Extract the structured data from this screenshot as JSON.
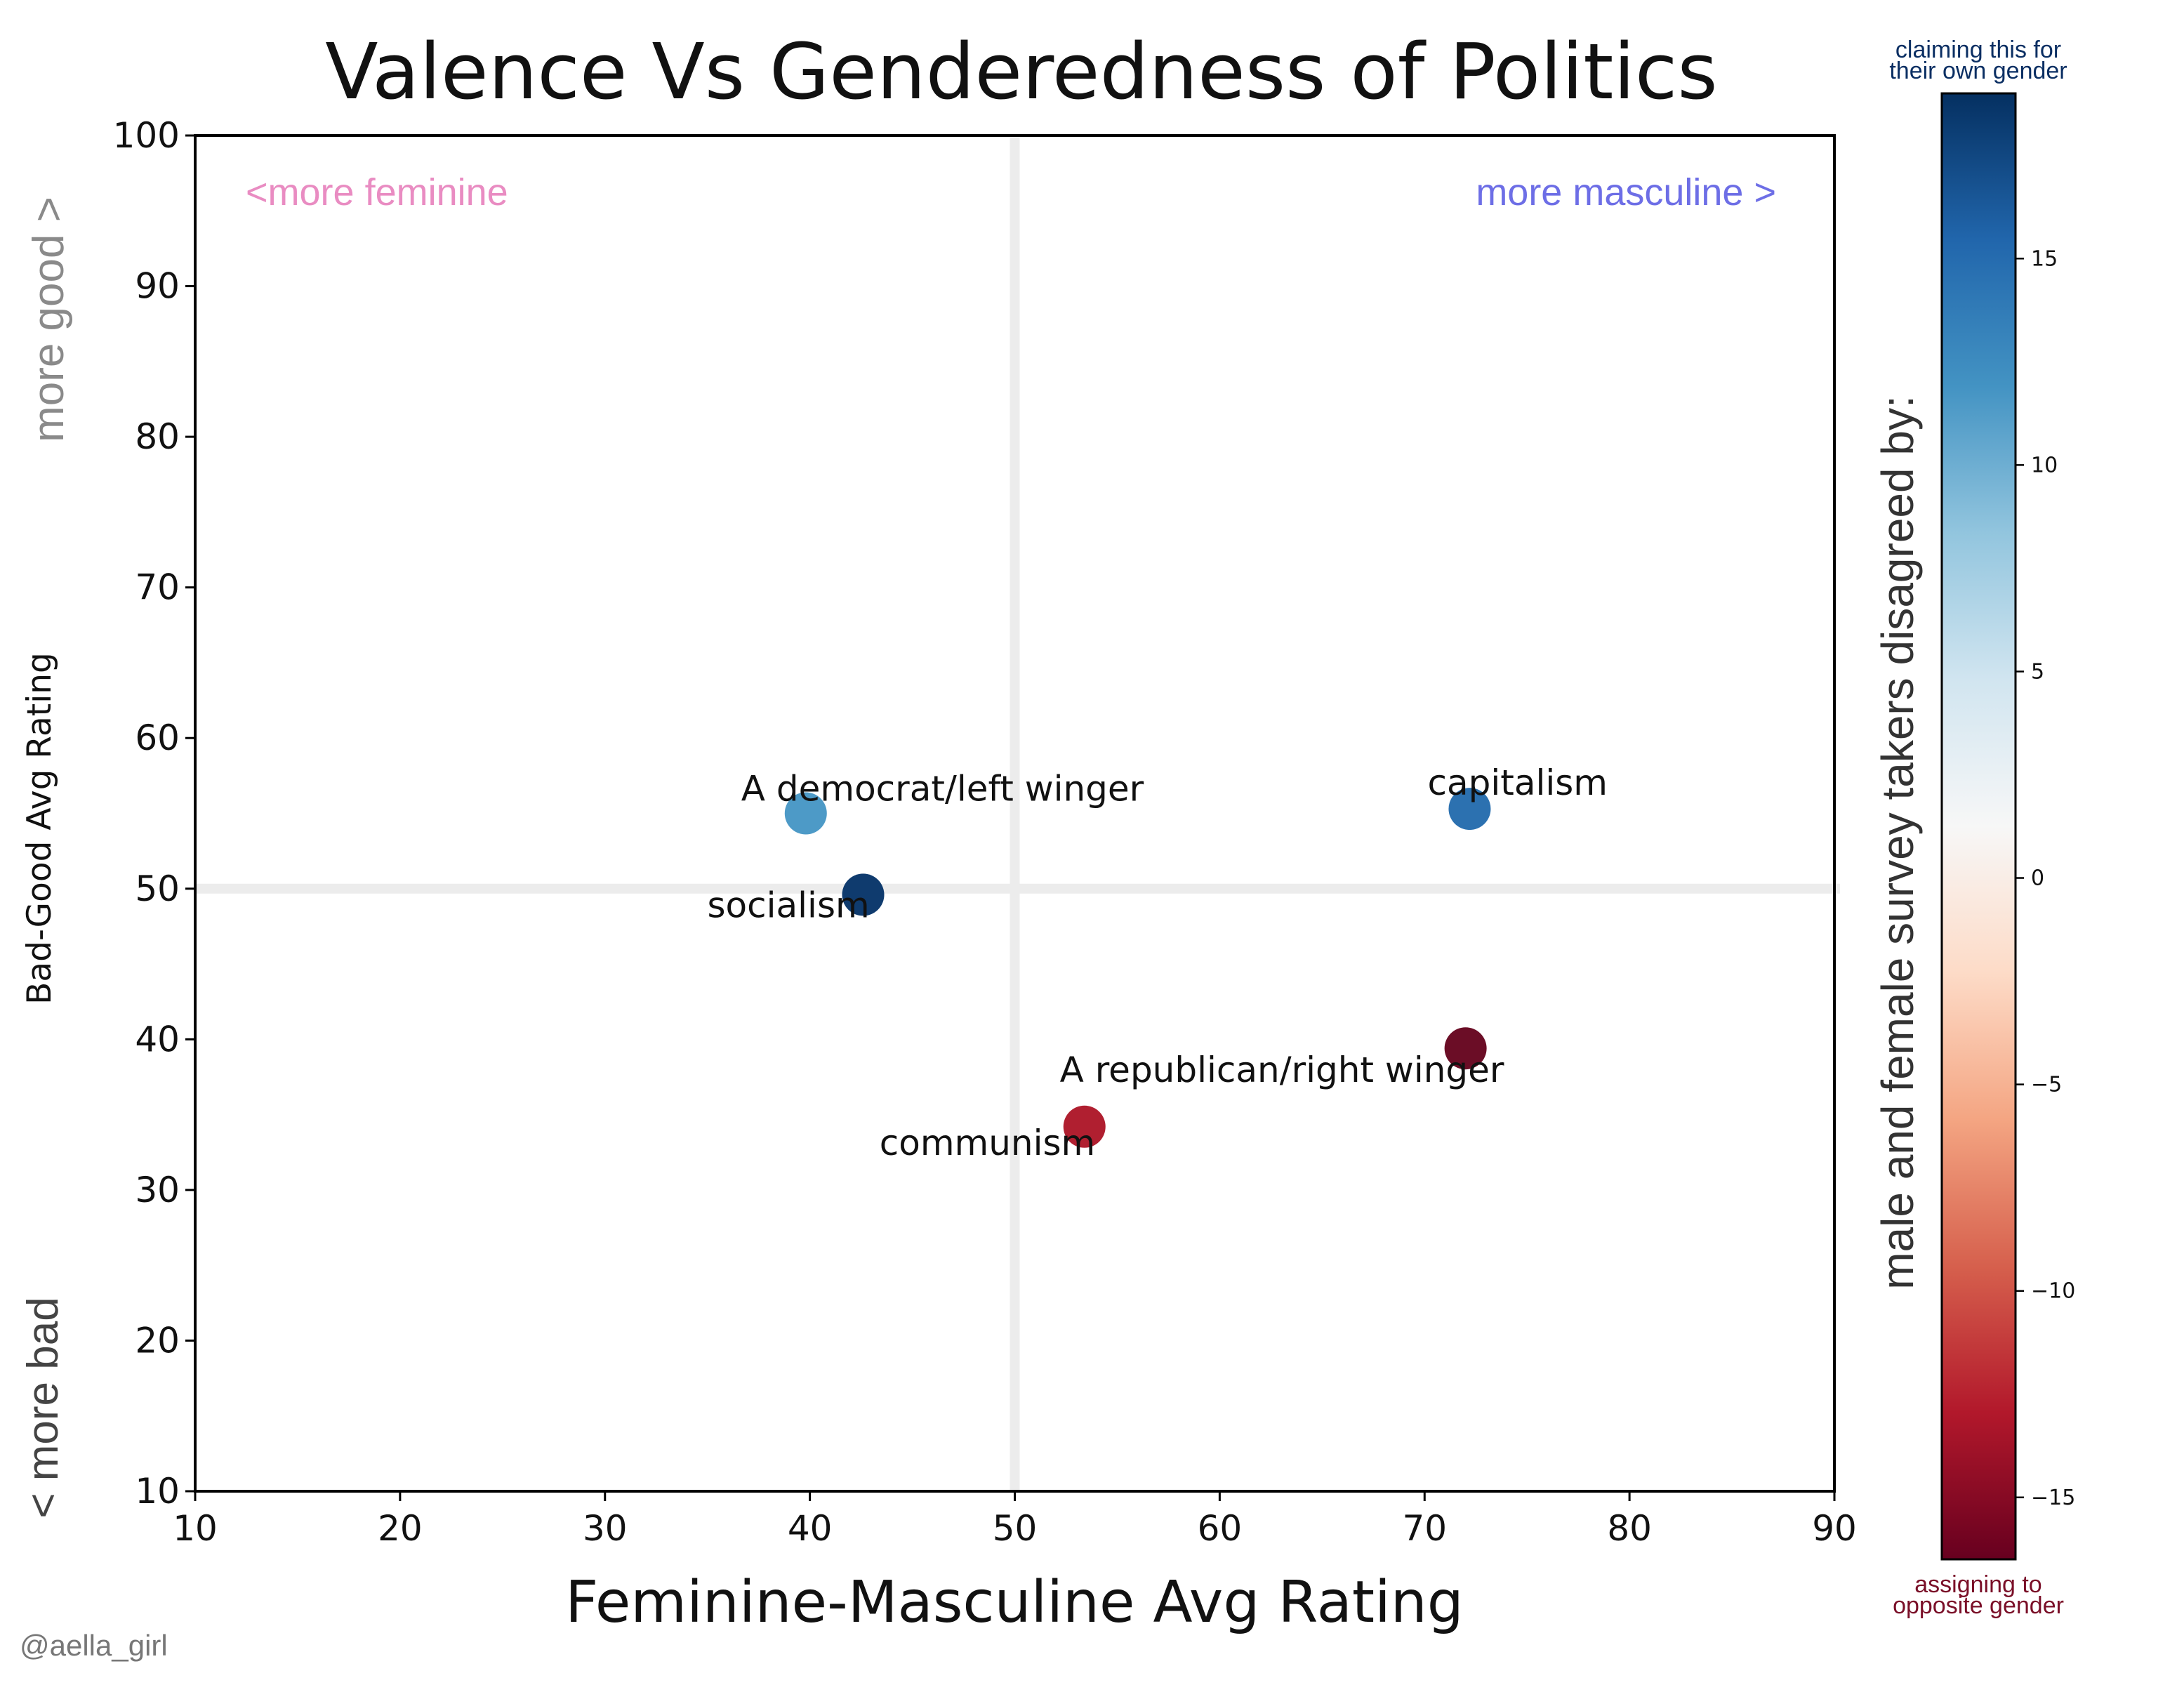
{
  "chart_data": {
    "type": "scatter",
    "title": "Valence Vs Genderedness of Politics",
    "xlabel": "Feminine-Masculine Avg Rating",
    "ylabel": "Bad-Good Avg Rating",
    "xlim": [
      10,
      90
    ],
    "ylim": [
      10,
      100
    ],
    "xticks": [
      10,
      20,
      30,
      40,
      50,
      60,
      70,
      80,
      90
    ],
    "yticks": [
      10,
      20,
      30,
      40,
      50,
      60,
      70,
      80,
      90,
      100
    ],
    "reference_lines": {
      "x": 50,
      "y": 50
    },
    "grid": false,
    "points": [
      {
        "label": "A democrat/left winger",
        "x": 39.8,
        "y": 55.0,
        "c": 9,
        "color": "#4d9ac7"
      },
      {
        "label": "socialism",
        "x": 42.6,
        "y": 49.6,
        "c": 18,
        "color": "#0f3b6e"
      },
      {
        "label": "capitalism",
        "x": 72.2,
        "y": 55.3,
        "c": 14,
        "color": "#2c71b0"
      },
      {
        "label": "A republican/right winger",
        "x": 72.0,
        "y": 39.4,
        "c": -16,
        "color": "#6b0d26"
      },
      {
        "label": "communism",
        "x": 53.4,
        "y": 34.2,
        "c": -13,
        "color": "#b01f30"
      }
    ],
    "colorbar": {
      "label": "male and female survey takers disagreed by:",
      "range": [
        -16.5,
        19
      ],
      "ticks": [
        15,
        10,
        5,
        0,
        -5,
        -10,
        -15
      ],
      "tick_labels": [
        "15",
        "10",
        "5",
        "0",
        "−5",
        "−10",
        "−15"
      ],
      "top_caption": [
        "claiming this for",
        "their own gender"
      ],
      "bottom_caption": [
        "assigning to",
        "opposite gender"
      ],
      "colormap": "RdBu",
      "stops": [
        "#67001f",
        "#b2182b",
        "#d6604d",
        "#f4a582",
        "#fddbc7",
        "#f7f7f7",
        "#d1e5f0",
        "#92c5de",
        "#4393c3",
        "#2166ac",
        "#053061"
      ]
    },
    "annotations": {
      "more_feminine": "<more feminine",
      "more_masculine": "more masculine >",
      "more_good": "more good >",
      "more_bad": "< more bad"
    },
    "colors": {
      "feminine": "#e98cc2",
      "masculine": "#6d6ee6",
      "side_gray": "#8a8a8a",
      "caption_blue": "#0b2f63",
      "caption_red": "#7a0f28"
    }
  },
  "credit": "@aella_girl"
}
